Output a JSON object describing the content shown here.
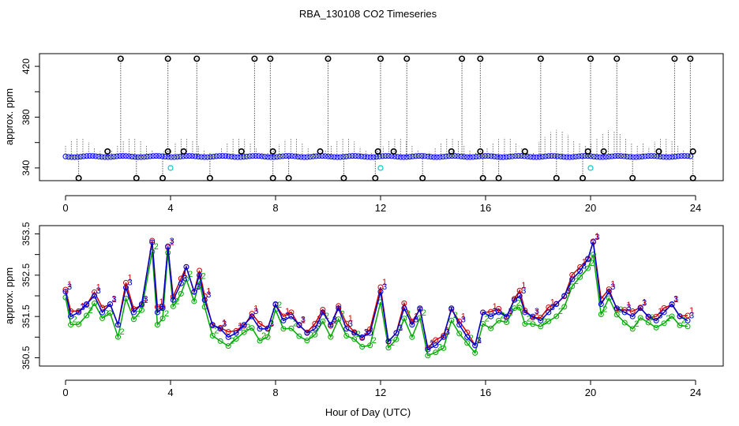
{
  "title": "RBA_130108  CO2 Timeseries",
  "xlabel": "Hour of Day (UTC)",
  "chart_data": [
    {
      "type": "scatter",
      "panel": "top",
      "ylabel": "approx. ppm",
      "xlim": [
        -2,
        25
      ],
      "ylim": [
        330,
        430
      ],
      "xticks": [
        0,
        4,
        8,
        12,
        16,
        20,
        24
      ],
      "yticks": [
        340,
        380,
        420
      ],
      "yticks_all": [
        340,
        360,
        380,
        400,
        420
      ],
      "baseline": 349,
      "spike_high_x": [
        2.1,
        3.9,
        5.0,
        7.2,
        7.8,
        10.0,
        12.0,
        13.0,
        15.1,
        15.8,
        18.1,
        20.0,
        21.0,
        23.2,
        23.8
      ],
      "spike_mid_x": [
        1.6,
        3.9,
        4.5,
        6.7,
        7.9,
        9.7,
        11.9,
        12.5,
        14.7,
        15.8,
        17.5,
        19.9,
        20.5,
        22.6,
        23.9
      ],
      "spike_low_x": [
        0.5,
        2.7,
        3.7,
        5.5,
        7.9,
        8.5,
        10.6,
        11.8,
        13.6,
        15.9,
        16.5,
        18.7,
        19.7,
        21.6,
        23.9
      ],
      "cyan_points": [
        [
          4.0,
          340
        ],
        [
          12.0,
          340
        ],
        [
          20.0,
          340
        ]
      ],
      "high_value": 426,
      "mid_value": 353,
      "low_value": 332,
      "colors": {
        "series": "#0000ee",
        "spike": "#000000",
        "cyan": "#00cccc"
      }
    },
    {
      "type": "line",
      "panel": "bottom",
      "ylabel": "approx. ppm",
      "xlim": [
        -2,
        25
      ],
      "ylim": [
        350.3,
        353.7
      ],
      "xticks": [
        0,
        4,
        8,
        12,
        16,
        20,
        24
      ],
      "yticks": [
        350.5,
        351.5,
        352.5,
        353.5
      ],
      "series": [
        {
          "name": "1",
          "color": "#cc0000",
          "offset": 0.05
        },
        {
          "name": "2",
          "color": "#00aa00",
          "offset": -0.22
        },
        {
          "name": "3",
          "color": "#0000cc",
          "offset": 0.0
        }
      ],
      "x": [
        0,
        0.2,
        0.5,
        0.8,
        1.1,
        1.4,
        1.7,
        2.0,
        2.3,
        2.6,
        2.9,
        3.3,
        3.5,
        3.7,
        3.9,
        4.1,
        4.4,
        4.6,
        4.9,
        5.1,
        5.3,
        5.6,
        5.9,
        6.2,
        6.5,
        6.8,
        7.1,
        7.4,
        7.7,
        8.0,
        8.3,
        8.6,
        8.9,
        9.2,
        9.5,
        9.8,
        10.1,
        10.4,
        10.7,
        11.0,
        11.3,
        11.6,
        12.0,
        12.3,
        12.6,
        12.9,
        13.2,
        13.5,
        13.8,
        14.1,
        14.4,
        14.7,
        15.0,
        15.3,
        15.6,
        15.9,
        16.2,
        16.5,
        16.8,
        17.1,
        17.3,
        17.5,
        17.8,
        18.1,
        18.4,
        18.7,
        19.0,
        19.3,
        19.6,
        19.9,
        20.1,
        20.4,
        20.7,
        21.0,
        21.3,
        21.6,
        21.9,
        22.2,
        22.5,
        22.8,
        23.1,
        23.4,
        23.7
      ],
      "y": [
        352.1,
        351.5,
        351.6,
        351.8,
        352.0,
        351.6,
        351.8,
        351.3,
        352.2,
        351.6,
        351.8,
        353.3,
        351.6,
        351.7,
        353.2,
        351.9,
        352.3,
        352.7,
        352.1,
        352.5,
        351.9,
        351.3,
        351.2,
        351.0,
        351.1,
        351.3,
        351.5,
        351.2,
        351.2,
        351.8,
        351.4,
        351.5,
        351.3,
        351.1,
        351.2,
        351.6,
        351.3,
        351.7,
        351.2,
        351.1,
        351.0,
        351.1,
        352.1,
        350.9,
        351.1,
        351.7,
        351.3,
        351.7,
        350.7,
        350.8,
        351.0,
        351.7,
        351.3,
        351.0,
        350.8,
        351.6,
        351.5,
        351.6,
        351.5,
        351.9,
        352.0,
        351.6,
        351.5,
        351.4,
        351.6,
        351.8,
        352.0,
        352.4,
        352.6,
        352.9,
        353.3,
        351.8,
        352.1,
        351.7,
        351.6,
        351.5,
        351.7,
        351.5,
        351.4,
        351.6,
        351.8,
        351.5,
        351.4
      ]
    }
  ]
}
